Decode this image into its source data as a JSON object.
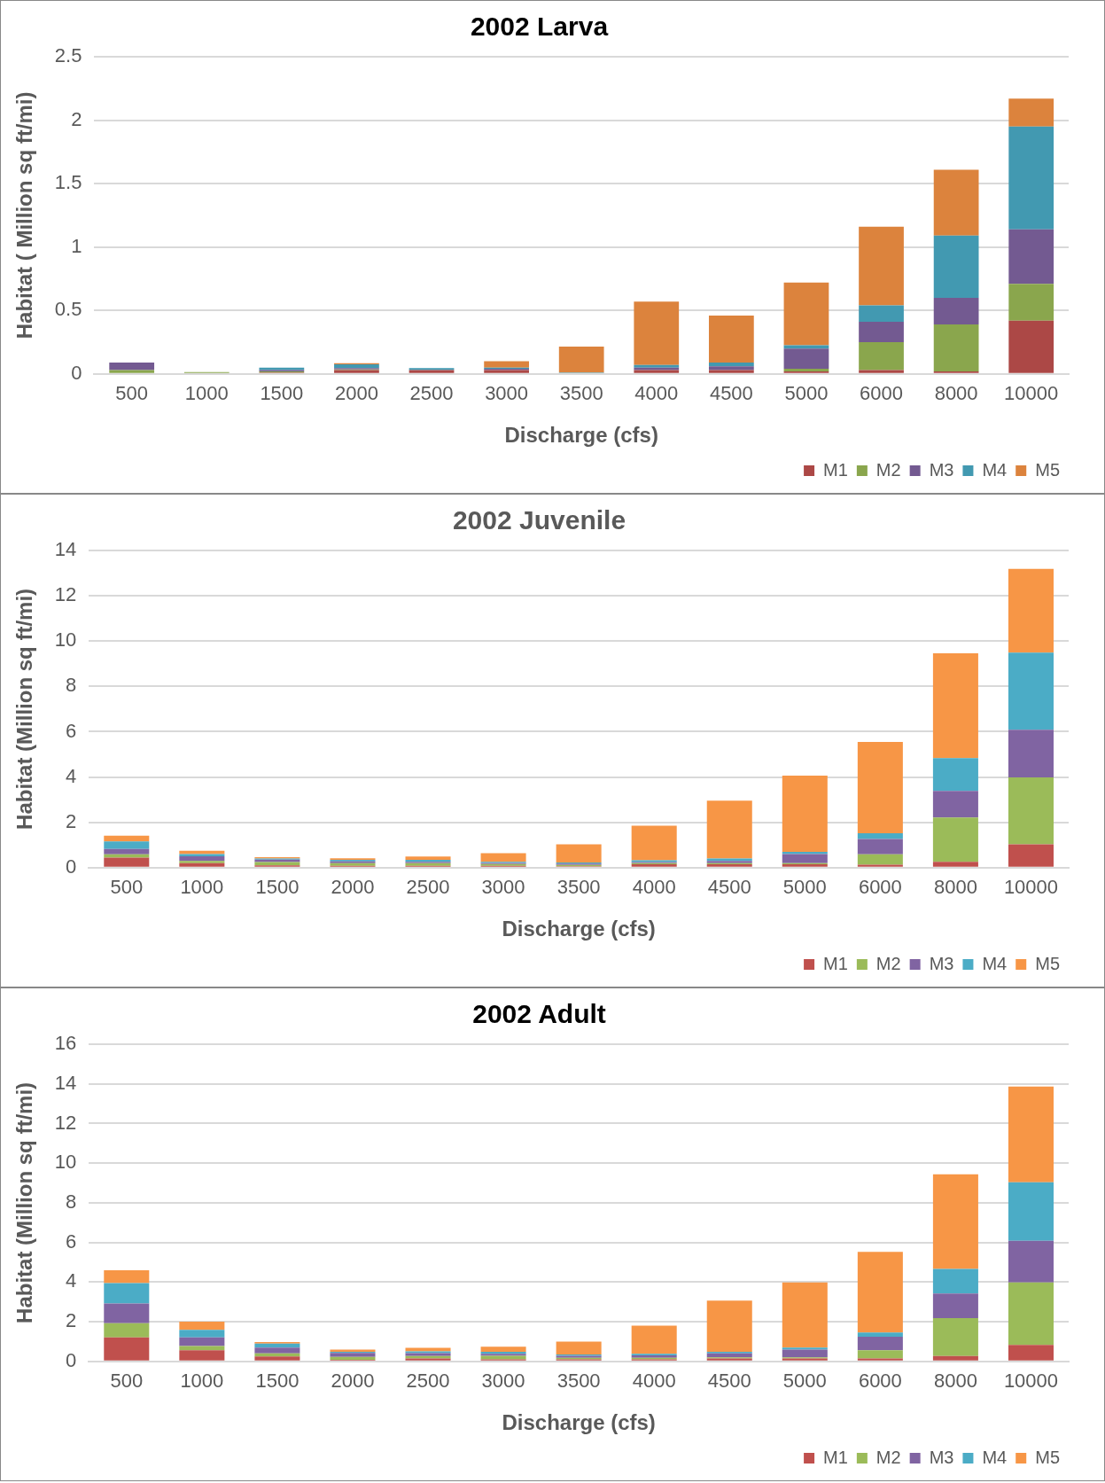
{
  "chart_data": [
    {
      "type": "bar",
      "title": "2002 Larva",
      "xlabel": "Discharge (cfs)",
      "ylabel": "Habitat ( Million sq ft/mi)",
      "stacked": true,
      "grid": "y",
      "legend": "bottom right",
      "categories": [
        "500",
        "1000",
        "1500",
        "2000",
        "2500",
        "3000",
        "3500",
        "4000",
        "4500",
        "5000",
        "6000",
        "8000",
        "10000"
      ],
      "ylim": [
        0,
        2.5
      ],
      "yticks": [
        0,
        0.5,
        1,
        1.5,
        2,
        2.5
      ],
      "series": [
        {
          "name": "M1",
          "color": "#ac4846",
          "values": [
            0,
            0,
            0.01,
            0.03,
            0.03,
            0.03,
            0,
            0.03,
            0.03,
            0.02,
            0.03,
            0.02,
            0.42
          ]
        },
        {
          "name": "M2",
          "color": "#8aa64d",
          "values": [
            0.03,
            0.015,
            0.01,
            0.005,
            0,
            0,
            0,
            0,
            0,
            0.02,
            0.22,
            0.37,
            0.29
          ]
        },
        {
          "name": "M3",
          "color": "#735a91",
          "values": [
            0.06,
            0,
            0.01,
            0.01,
            0,
            0.01,
            0,
            0.02,
            0.03,
            0.16,
            0.16,
            0.21,
            0.43
          ]
        },
        {
          "name": "M4",
          "color": "#4299b1",
          "values": [
            0,
            0,
            0.02,
            0.03,
            0.015,
            0.01,
            0.01,
            0.02,
            0.03,
            0.025,
            0.13,
            0.49,
            0.81
          ]
        },
        {
          "name": "M5",
          "color": "#dc833d",
          "values": [
            0,
            0,
            0,
            0.01,
            0,
            0.05,
            0.205,
            0.5,
            0.37,
            0.495,
            0.62,
            0.52,
            0.22
          ]
        }
      ]
    },
    {
      "type": "bar",
      "title": "2002 Juvenile",
      "xlabel": "Discharge (cfs)",
      "ylabel": "Habitat (Million sq ft/mi)",
      "stacked": true,
      "grid": "y",
      "legend": "bottom right",
      "categories": [
        "500",
        "1000",
        "1500",
        "2000",
        "2500",
        "3000",
        "3500",
        "4000",
        "4500",
        "5000",
        "6000",
        "8000",
        "10000"
      ],
      "ylim": [
        0,
        14
      ],
      "yticks": [
        0,
        2,
        4,
        6,
        8,
        10,
        12,
        14
      ],
      "series": [
        {
          "name": "M1",
          "color": "#c0504d",
          "values": [
            0.44,
            0.2,
            0.1,
            0.08,
            0.08,
            0.08,
            0.06,
            0.15,
            0.15,
            0.15,
            0.13,
            0.26,
            1.03
          ]
        },
        {
          "name": "M2",
          "color": "#9bbb59",
          "values": [
            0.15,
            0.1,
            0.15,
            0.12,
            0.12,
            0.08,
            0.06,
            0.05,
            0.05,
            0.05,
            0.46,
            1.95,
            2.95
          ]
        },
        {
          "name": "M3",
          "color": "#8064a2",
          "values": [
            0.23,
            0.2,
            0.1,
            0.08,
            0.06,
            0.05,
            0.06,
            0.05,
            0.1,
            0.4,
            0.67,
            1.18,
            2.11
          ]
        },
        {
          "name": "M4",
          "color": "#4bacc6",
          "values": [
            0.34,
            0.1,
            0.05,
            0.06,
            0.08,
            0.05,
            0.05,
            0.07,
            0.1,
            0.1,
            0.26,
            1.44,
            3.4
          ]
        },
        {
          "name": "M5",
          "color": "#f79646",
          "values": [
            0.25,
            0.15,
            0.06,
            0.07,
            0.15,
            0.38,
            0.8,
            1.53,
            2.56,
            3.36,
            4.03,
            4.63,
            3.7
          ]
        }
      ]
    },
    {
      "type": "bar",
      "title": "2002 Adult",
      "xlabel": "Discharge (cfs)",
      "ylabel": "Habitat (Million sq ft/mi)",
      "stacked": true,
      "grid": "y",
      "legend": "bottom right",
      "categories": [
        "500",
        "1000",
        "1500",
        "2000",
        "2500",
        "3000",
        "3500",
        "4000",
        "4500",
        "5000",
        "6000",
        "8000",
        "10000"
      ],
      "ylim": [
        0,
        16
      ],
      "yticks": [
        0,
        2,
        4,
        6,
        8,
        10,
        12,
        14,
        16
      ],
      "series": [
        {
          "name": "M1",
          "color": "#c0504d",
          "values": [
            1.21,
            0.56,
            0.25,
            0.08,
            0.15,
            0.1,
            0.1,
            0.1,
            0.15,
            0.15,
            0.15,
            0.27,
            0.83
          ]
        },
        {
          "name": "M2",
          "color": "#9bbb59",
          "values": [
            0.71,
            0.21,
            0.15,
            0.15,
            0.12,
            0.18,
            0.08,
            0.08,
            0.05,
            0.05,
            0.41,
            1.91,
            3.15
          ]
        },
        {
          "name": "M3",
          "color": "#8064a2",
          "values": [
            1.0,
            0.44,
            0.3,
            0.2,
            0.15,
            0.1,
            0.1,
            0.12,
            0.2,
            0.4,
            0.68,
            1.24,
            2.1
          ]
        },
        {
          "name": "M4",
          "color": "#4bacc6",
          "values": [
            1.03,
            0.38,
            0.2,
            0.05,
            0.08,
            0.1,
            0.07,
            0.08,
            0.08,
            0.1,
            0.21,
            1.24,
            2.95
          ]
        },
        {
          "name": "M5",
          "color": "#f79646",
          "values": [
            0.65,
            0.41,
            0.07,
            0.11,
            0.18,
            0.26,
            0.65,
            1.42,
            2.59,
            3.28,
            4.07,
            4.78,
            4.83
          ]
        }
      ]
    }
  ]
}
